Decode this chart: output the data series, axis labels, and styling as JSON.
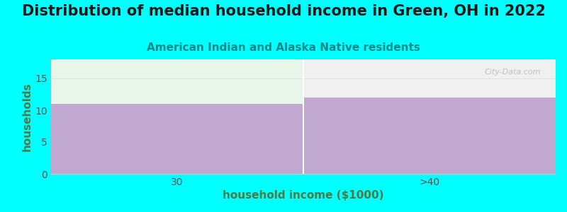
{
  "title": "Distribution of median household income in Green, OH in 2022",
  "subtitle": "American Indian and Alaska Native residents",
  "xlabel": "household income ($1000)",
  "ylabel": "households",
  "background_color": "#00FFFF",
  "plot_bg_color": "#FFFFFF",
  "bar_color": "#C0A8D0",
  "top_area_color_left": "#E8F5E9",
  "top_area_color_right": "#F0F0F0",
  "categories": [
    "30",
    ">40"
  ],
  "values": [
    11,
    12
  ],
  "ylim": [
    0,
    18
  ],
  "yticks": [
    0,
    5,
    10,
    15
  ],
  "title_fontsize": 15,
  "subtitle_fontsize": 11,
  "subtitle_color": "#008B8B",
  "axis_label_color": "#4A7A4A",
  "tick_color": "#555555",
  "xlabel_color": "#4A7A4A",
  "watermark": "City-Data.com",
  "grid_color": "#DDDDDD",
  "spine_color": "#CCCCCC"
}
